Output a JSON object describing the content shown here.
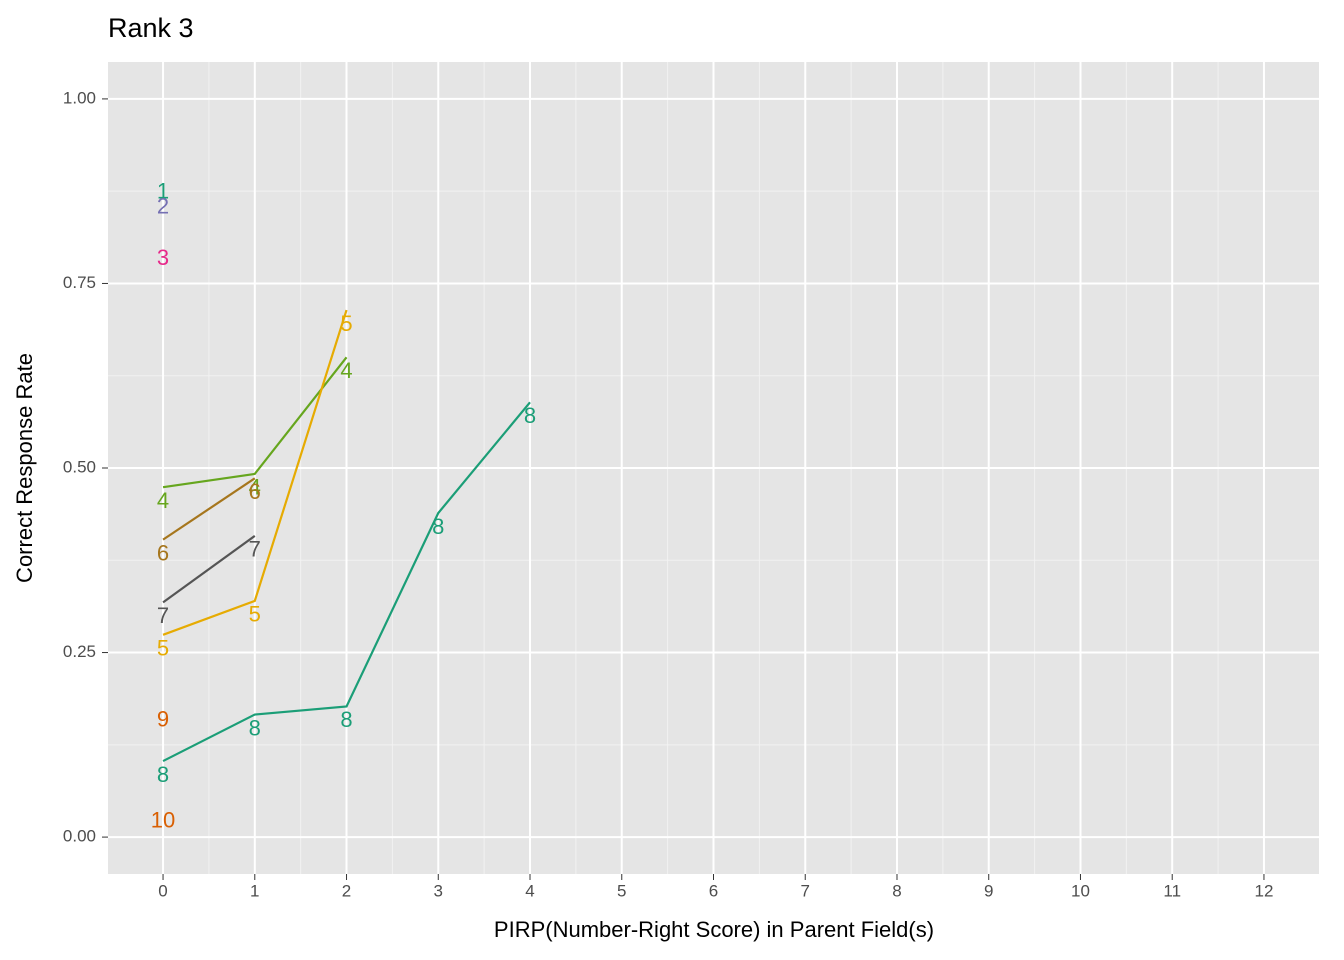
{
  "chart_data": {
    "type": "line",
    "title": "Rank 3",
    "x_label": "PIRP(Number-Right Score) in Parent Field(s)",
    "y_label": "Correct Response Rate",
    "x": [
      0,
      1,
      2,
      3,
      4
    ],
    "series": [
      {
        "name": "1",
        "color": "#1b9e77",
        "values": [
          0.893,
          null,
          null,
          null,
          null
        ]
      },
      {
        "name": "2",
        "color": "#7570b3",
        "values": [
          0.873,
          null,
          null,
          null,
          null
        ]
      },
      {
        "name": "3",
        "color": "#e7298a",
        "values": [
          0.803,
          null,
          null,
          null,
          null
        ]
      },
      {
        "name": "4",
        "color": "#66a61e",
        "values": [
          0.474,
          0.492,
          0.65,
          null,
          null
        ]
      },
      {
        "name": "5",
        "color": "#e6ab02",
        "values": [
          0.274,
          0.32,
          0.714,
          null,
          null
        ]
      },
      {
        "name": "6",
        "color": "#a6761d",
        "values": [
          0.403,
          0.486,
          null,
          null,
          null
        ]
      },
      {
        "name": "7",
        "color": "#555555",
        "values": [
          0.318,
          0.408,
          null,
          null,
          null
        ]
      },
      {
        "name": "8",
        "color": "#1b9e77",
        "values": [
          0.103,
          0.166,
          0.177,
          0.439,
          0.589
        ]
      },
      {
        "name": "9",
        "color": "#d95f02",
        "values": [
          0.178,
          null,
          null,
          null,
          null
        ]
      },
      {
        "name": "10",
        "color": "#d95f02",
        "values": [
          0.041,
          null,
          null,
          null,
          null
        ]
      }
    ],
    "xlim": [
      -0.6,
      12.6
    ],
    "ylim": [
      -0.05,
      1.05
    ],
    "xticks": [
      0,
      1,
      2,
      3,
      4,
      5,
      6,
      7,
      8,
      9,
      10,
      11,
      12
    ],
    "yticks": [
      {
        "value": 0,
        "label": "0.00"
      },
      {
        "value": 0.25,
        "label": "0.25"
      },
      {
        "value": 0.5,
        "label": "0.50"
      },
      {
        "value": 0.75,
        "label": "0.75"
      },
      {
        "value": 1,
        "label": "1.00"
      }
    ],
    "grid": true
  }
}
